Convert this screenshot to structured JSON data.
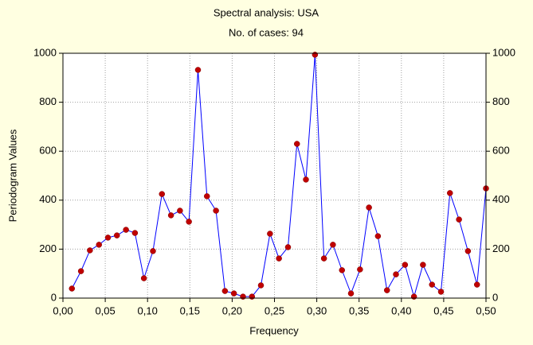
{
  "chart_data": {
    "type": "line",
    "title": "Spectral analysis: USA",
    "subtitle": "No. of cases: 94",
    "x_label": "Frequency",
    "y_label": "Periodogram Values",
    "x": [
      0.0106,
      0.0213,
      0.0319,
      0.0426,
      0.0532,
      0.0638,
      0.0745,
      0.0851,
      0.0957,
      0.1064,
      0.117,
      0.1277,
      0.1383,
      0.1489,
      0.1596,
      0.1702,
      0.1809,
      0.1915,
      0.2021,
      0.2128,
      0.2234,
      0.234,
      0.2447,
      0.2553,
      0.266,
      0.2766,
      0.2872,
      0.2979,
      0.3085,
      0.3191,
      0.3298,
      0.3404,
      0.3511,
      0.3617,
      0.3723,
      0.383,
      0.3936,
      0.4043,
      0.4149,
      0.4255,
      0.4362,
      0.4468,
      0.4574,
      0.4681,
      0.4787,
      0.4894,
      0.5
    ],
    "values": [
      39,
      110,
      195,
      218,
      247,
      256,
      279,
      266,
      81,
      192,
      425,
      338,
      357,
      312,
      932,
      416,
      357,
      29,
      19,
      6,
      6,
      52,
      263,
      162,
      208,
      630,
      484,
      994,
      162,
      218,
      114,
      19,
      117,
      370,
      253,
      32,
      97,
      136,
      6,
      136,
      55,
      26,
      429,
      321,
      192,
      55,
      448
    ],
    "color": "#0000ff",
    "marker_color": "#c00000",
    "xlim": [
      0,
      0.5
    ],
    "xticks": [
      {
        "value": 0,
        "label": "0,00"
      },
      {
        "value": 0.05,
        "label": "0,05"
      },
      {
        "value": 0.1,
        "label": "0,10"
      },
      {
        "value": 0.15,
        "label": "0,15"
      },
      {
        "value": 0.2,
        "label": "0,20"
      },
      {
        "value": 0.25,
        "label": "0,25"
      },
      {
        "value": 0.3,
        "label": "0,30"
      },
      {
        "value": 0.35,
        "label": "0,35"
      },
      {
        "value": 0.4,
        "label": "0,40"
      },
      {
        "value": 0.45,
        "label": "0,45"
      },
      {
        "value": 0.5,
        "label": "0,50"
      }
    ],
    "ylim": [
      0,
      1000
    ],
    "yticks": [
      0,
      200,
      400,
      600,
      800,
      1000
    ],
    "y2lim": [
      0,
      1000
    ],
    "y2ticks": [
      0,
      200,
      400,
      600,
      800,
      1000
    ],
    "grid": true
  }
}
